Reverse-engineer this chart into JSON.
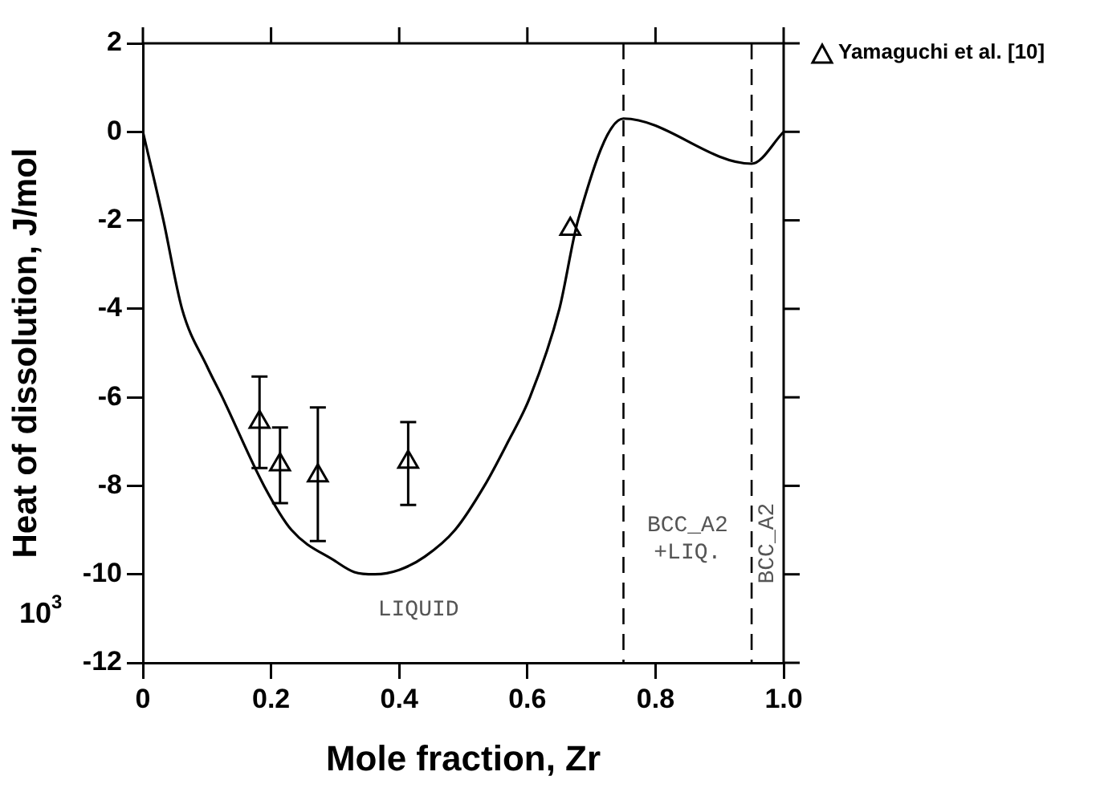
{
  "chart_data": {
    "type": "line",
    "xlabel": "Mole fraction, Zr",
    "ylabel": "Heat of dissolution, J/mol",
    "xlim": [
      0,
      1
    ],
    "xticks": [
      0,
      0.2,
      0.4,
      0.6,
      0.8,
      {
        "value": 1,
        "label": "1.0"
      }
    ],
    "ylim": [
      -12,
      2
    ],
    "yticks": [
      -12,
      -10,
      -8,
      -6,
      -4,
      -2,
      0,
      2
    ],
    "legend": "top right",
    "series": [
      {
        "type": "line",
        "color": "#000000",
        "marker": "none",
        "line_style": "solid",
        "x": [
          0,
          0.032,
          0.061,
          0.1,
          0.124,
          0.189,
          0.232,
          0.3,
          0.33,
          0.362,
          0.4,
          0.44,
          0.487,
          0.533,
          0.57,
          0.604,
          0.65,
          0.679,
          0.75,
          0.95,
          1.0
        ],
        "values": [
          0,
          -2,
          -4,
          -5.3,
          -6,
          -8,
          -9,
          -9.7,
          -9.95,
          -10,
          -9.9,
          -9.6,
          -9,
          -8,
          -7,
          -6,
          -4,
          -2,
          0.3,
          -0.72,
          0
        ]
      },
      {
        "type": "scatter",
        "name": "Yamaguchi et al. [10]",
        "color": "#000000",
        "marker": "triangle",
        "x": [
          0.182,
          0.214,
          0.273,
          0.414,
          0.667
        ],
        "values": [
          -6.56,
          -7.52,
          -7.77,
          -7.46,
          -2.2
        ],
        "errors": [
          [
            -7.6,
            -5.53
          ],
          [
            -8.39,
            -6.68
          ],
          [
            -9.25,
            -6.23
          ],
          [
            -8.43,
            -6.56
          ],
          null
        ]
      }
    ],
    "ref_lines": [
      {
        "axis": "x",
        "value": 0.75,
        "line_style": "dashed",
        "color": "#000000"
      },
      {
        "axis": "x",
        "value": 0.95,
        "line_style": "dashed",
        "color": "#000000"
      }
    ],
    "annotations": [
      "LIQUID",
      "BCC_A2\n+LIQ.",
      "BCC_A2",
      "10$^{3}$"
    ]
  }
}
